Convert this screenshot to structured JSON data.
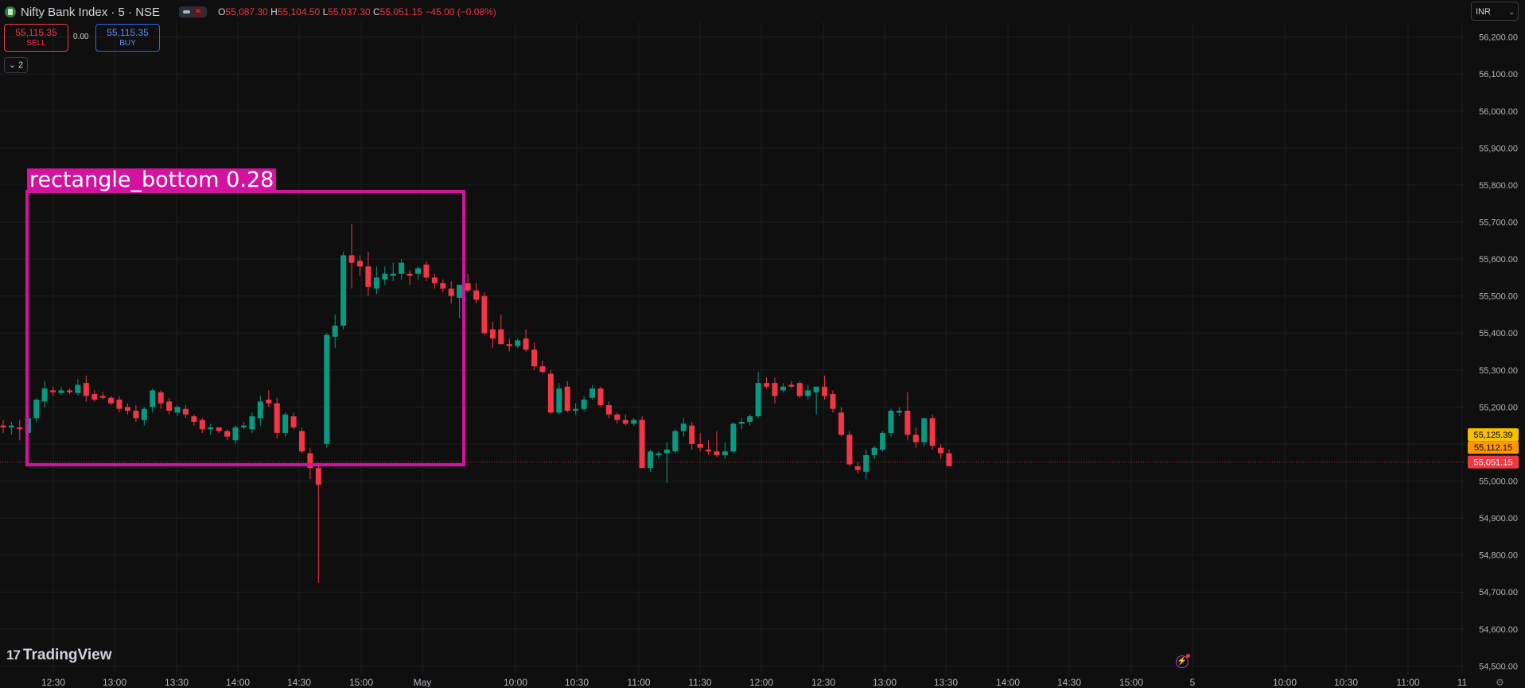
{
  "header": {
    "symbol": "Nifty Bank Index · 5 · NSE",
    "ohlc": {
      "o": "55,087.30",
      "h": "55,104.50",
      "l": "55,037.30",
      "c": "55,051.15",
      "change": "−45.00 (−0.08%)"
    }
  },
  "trade": {
    "sell_price": "55,115.35",
    "sell_label": "SELL",
    "spread": "0.00",
    "buy_price": "55,115.35",
    "buy_label": "BUY"
  },
  "indicator_toggle": "2",
  "currency": "INR",
  "logo_text": "TradingView",
  "detection": {
    "label": "rectangle_bottom  0.28"
  },
  "colors": {
    "up": "#089981",
    "down": "#f23645",
    "grid": "#1e1e1e",
    "detection": "#d1139f",
    "background": "#0f0f0f"
  },
  "chart_data": {
    "type": "candlestick",
    "y_ticks": [
      54500,
      54600,
      54700,
      54800,
      54900,
      55000,
      55100,
      55200,
      55300,
      55400,
      55500,
      55600,
      55700,
      55800,
      55900,
      56000,
      56100,
      56200
    ],
    "ylim": [
      54475,
      56240
    ],
    "x_labels": [
      "12:30",
      "13:00",
      "13:30",
      "14:00",
      "14:30",
      "15:00",
      "May",
      "10:00",
      "10:30",
      "11:00",
      "11:30",
      "12:00",
      "12:30",
      "13:00",
      "13:30",
      "14:00",
      "14:30",
      "15:00",
      "5",
      "10:00",
      "10:30",
      "11:00",
      "11",
      "11:00"
    ],
    "last_price_label": "55,051.15",
    "price_tags": [
      {
        "value": "55,125.39",
        "color": "#f7c000"
      },
      {
        "value": "55,112.15",
        "color": "#ff9800"
      }
    ],
    "candles": [
      {
        "o": 55150,
        "h": 55165,
        "l": 55130,
        "c": 55145
      },
      {
        "o": 55145,
        "h": 55160,
        "l": 55125,
        "c": 55150
      },
      {
        "o": 55145,
        "h": 55165,
        "l": 55110,
        "c": 55140
      },
      {
        "o": 55130,
        "h": 55175,
        "l": 55115,
        "c": 55170
      },
      {
        "o": 55170,
        "h": 55225,
        "l": 55160,
        "c": 55220
      },
      {
        "o": 55215,
        "h": 55270,
        "l": 55200,
        "c": 55250
      },
      {
        "o": 55245,
        "h": 55255,
        "l": 55230,
        "c": 55240
      },
      {
        "o": 55238,
        "h": 55255,
        "l": 55232,
        "c": 55245
      },
      {
        "o": 55245,
        "h": 55250,
        "l": 55235,
        "c": 55240
      },
      {
        "o": 55238,
        "h": 55275,
        "l": 55232,
        "c": 55260
      },
      {
        "o": 55265,
        "h": 55285,
        "l": 55215,
        "c": 55230
      },
      {
        "o": 55235,
        "h": 55245,
        "l": 55215,
        "c": 55220
      },
      {
        "o": 55230,
        "h": 55240,
        "l": 55220,
        "c": 55225
      },
      {
        "o": 55225,
        "h": 55230,
        "l": 55205,
        "c": 55210
      },
      {
        "o": 55220,
        "h": 55230,
        "l": 55185,
        "c": 55195
      },
      {
        "o": 55200,
        "h": 55210,
        "l": 55180,
        "c": 55190
      },
      {
        "o": 55190,
        "h": 55205,
        "l": 55160,
        "c": 55170
      },
      {
        "o": 55165,
        "h": 55200,
        "l": 55150,
        "c": 55195
      },
      {
        "o": 55200,
        "h": 55250,
        "l": 55185,
        "c": 55245
      },
      {
        "o": 55240,
        "h": 55245,
        "l": 55195,
        "c": 55210
      },
      {
        "o": 55215,
        "h": 55225,
        "l": 55180,
        "c": 55190
      },
      {
        "o": 55185,
        "h": 55205,
        "l": 55175,
        "c": 55200
      },
      {
        "o": 55195,
        "h": 55205,
        "l": 55170,
        "c": 55180
      },
      {
        "o": 55175,
        "h": 55180,
        "l": 55150,
        "c": 55160
      },
      {
        "o": 55165,
        "h": 55170,
        "l": 55130,
        "c": 55140
      },
      {
        "o": 55140,
        "h": 55155,
        "l": 55125,
        "c": 55145
      },
      {
        "o": 55145,
        "h": 55145,
        "l": 55130,
        "c": 55135
      },
      {
        "o": 55135,
        "h": 55140,
        "l": 55110,
        "c": 55120
      },
      {
        "o": 55110,
        "h": 55150,
        "l": 55100,
        "c": 55145
      },
      {
        "o": 55145,
        "h": 55160,
        "l": 55140,
        "c": 55150
      },
      {
        "o": 55140,
        "h": 55185,
        "l": 55130,
        "c": 55175
      },
      {
        "o": 55170,
        "h": 55230,
        "l": 55150,
        "c": 55215
      },
      {
        "o": 55220,
        "h": 55245,
        "l": 55200,
        "c": 55210
      },
      {
        "o": 55210,
        "h": 55225,
        "l": 55115,
        "c": 55130
      },
      {
        "o": 55130,
        "h": 55185,
        "l": 55120,
        "c": 55180
      },
      {
        "o": 55175,
        "h": 55185,
        "l": 55140,
        "c": 55145
      },
      {
        "o": 55135,
        "h": 55145,
        "l": 55075,
        "c": 55080
      },
      {
        "o": 55075,
        "h": 55090,
        "l": 55005,
        "c": 55035
      },
      {
        "o": 55035,
        "h": 55050,
        "l": 54725,
        "c": 54990
      },
      {
        "o": 55100,
        "h": 55400,
        "l": 55090,
        "c": 55395
      },
      {
        "o": 55390,
        "h": 55450,
        "l": 55360,
        "c": 55420
      },
      {
        "o": 55420,
        "h": 55620,
        "l": 55410,
        "c": 55610
      },
      {
        "o": 55610,
        "h": 55695,
        "l": 55520,
        "c": 55590
      },
      {
        "o": 55595,
        "h": 55610,
        "l": 55555,
        "c": 55580
      },
      {
        "o": 55580,
        "h": 55620,
        "l": 55500,
        "c": 55525
      },
      {
        "o": 55520,
        "h": 55580,
        "l": 55505,
        "c": 55550
      },
      {
        "o": 55545,
        "h": 55580,
        "l": 55530,
        "c": 55560
      },
      {
        "o": 55555,
        "h": 55590,
        "l": 55540,
        "c": 55560
      },
      {
        "o": 55560,
        "h": 55600,
        "l": 55545,
        "c": 55590
      },
      {
        "o": 55560,
        "h": 55570,
        "l": 55530,
        "c": 55555
      },
      {
        "o": 55560,
        "h": 55580,
        "l": 55545,
        "c": 55575
      },
      {
        "o": 55585,
        "h": 55595,
        "l": 55540,
        "c": 55550
      },
      {
        "o": 55550,
        "h": 55560,
        "l": 55520,
        "c": 55535
      },
      {
        "o": 55535,
        "h": 55545,
        "l": 55510,
        "c": 55520
      },
      {
        "o": 55520,
        "h": 55540,
        "l": 55480,
        "c": 55500
      },
      {
        "o": 55495,
        "h": 55530,
        "l": 55440,
        "c": 55530
      },
      {
        "o": 55535,
        "h": 55560,
        "l": 55510,
        "c": 55515
      },
      {
        "o": 55515,
        "h": 55535,
        "l": 55480,
        "c": 55490
      },
      {
        "o": 55500,
        "h": 55510,
        "l": 55395,
        "c": 55400
      },
      {
        "o": 55410,
        "h": 55430,
        "l": 55360,
        "c": 55385
      },
      {
        "o": 55410,
        "h": 55450,
        "l": 55370,
        "c": 55370
      },
      {
        "o": 55370,
        "h": 55385,
        "l": 55350,
        "c": 55365
      },
      {
        "o": 55365,
        "h": 55385,
        "l": 55360,
        "c": 55380
      },
      {
        "o": 55385,
        "h": 55410,
        "l": 55350,
        "c": 55355
      },
      {
        "o": 55355,
        "h": 55375,
        "l": 55300,
        "c": 55310
      },
      {
        "o": 55310,
        "h": 55325,
        "l": 55290,
        "c": 55295
      },
      {
        "o": 55290,
        "h": 55300,
        "l": 55180,
        "c": 55185
      },
      {
        "o": 55185,
        "h": 55265,
        "l": 55180,
        "c": 55250
      },
      {
        "o": 55255,
        "h": 55270,
        "l": 55185,
        "c": 55190
      },
      {
        "o": 55190,
        "h": 55210,
        "l": 55180,
        "c": 55195
      },
      {
        "o": 55195,
        "h": 55230,
        "l": 55190,
        "c": 55220
      },
      {
        "o": 55225,
        "h": 55260,
        "l": 55220,
        "c": 55250
      },
      {
        "o": 55250,
        "h": 55255,
        "l": 55200,
        "c": 55205
      },
      {
        "o": 55205,
        "h": 55215,
        "l": 55170,
        "c": 55180
      },
      {
        "o": 55180,
        "h": 55185,
        "l": 55155,
        "c": 55165
      },
      {
        "o": 55165,
        "h": 55180,
        "l": 55150,
        "c": 55155
      },
      {
        "o": 55155,
        "h": 55170,
        "l": 55150,
        "c": 55165
      },
      {
        "o": 55165,
        "h": 55175,
        "l": 55035,
        "c": 55035
      },
      {
        "o": 55035,
        "h": 55085,
        "l": 55025,
        "c": 55080
      },
      {
        "o": 55070,
        "h": 55080,
        "l": 55060,
        "c": 55075
      },
      {
        "o": 55075,
        "h": 55105,
        "l": 54995,
        "c": 55085
      },
      {
        "o": 55080,
        "h": 55140,
        "l": 55075,
        "c": 55135
      },
      {
        "o": 55135,
        "h": 55170,
        "l": 55120,
        "c": 55155
      },
      {
        "o": 55150,
        "h": 55160,
        "l": 55085,
        "c": 55100
      },
      {
        "o": 55100,
        "h": 55130,
        "l": 55080,
        "c": 55090
      },
      {
        "o": 55085,
        "h": 55110,
        "l": 55070,
        "c": 55080
      },
      {
        "o": 55080,
        "h": 55135,
        "l": 55065,
        "c": 55070
      },
      {
        "o": 55070,
        "h": 55105,
        "l": 55060,
        "c": 55080
      },
      {
        "o": 55080,
        "h": 55160,
        "l": 55075,
        "c": 55155
      },
      {
        "o": 55155,
        "h": 55170,
        "l": 55140,
        "c": 55160
      },
      {
        "o": 55160,
        "h": 55180,
        "l": 55150,
        "c": 55175
      },
      {
        "o": 55175,
        "h": 55295,
        "l": 55170,
        "c": 55265
      },
      {
        "o": 55265,
        "h": 55280,
        "l": 55250,
        "c": 55255
      },
      {
        "o": 55265,
        "h": 55280,
        "l": 55210,
        "c": 55230
      },
      {
        "o": 55245,
        "h": 55265,
        "l": 55240,
        "c": 55255
      },
      {
        "o": 55260,
        "h": 55270,
        "l": 55250,
        "c": 55255
      },
      {
        "o": 55265,
        "h": 55270,
        "l": 55225,
        "c": 55230
      },
      {
        "o": 55230,
        "h": 55260,
        "l": 55220,
        "c": 55245
      },
      {
        "o": 55240,
        "h": 55255,
        "l": 55180,
        "c": 55255
      },
      {
        "o": 55255,
        "h": 55285,
        "l": 55220,
        "c": 55230
      },
      {
        "o": 55235,
        "h": 55245,
        "l": 55185,
        "c": 55195
      },
      {
        "o": 55185,
        "h": 55200,
        "l": 55120,
        "c": 55125
      },
      {
        "o": 55125,
        "h": 55135,
        "l": 55040,
        "c": 55045
      },
      {
        "o": 55040,
        "h": 55050,
        "l": 55020,
        "c": 55030
      },
      {
        "o": 55025,
        "h": 55085,
        "l": 55005,
        "c": 55070
      },
      {
        "o": 55070,
        "h": 55095,
        "l": 55060,
        "c": 55090
      },
      {
        "o": 55085,
        "h": 55135,
        "l": 55080,
        "c": 55130
      },
      {
        "o": 55130,
        "h": 55195,
        "l": 55120,
        "c": 55190
      },
      {
        "o": 55185,
        "h": 55200,
        "l": 55175,
        "c": 55190
      },
      {
        "o": 55190,
        "h": 55240,
        "l": 55110,
        "c": 55125
      },
      {
        "o": 55125,
        "h": 55145,
        "l": 55090,
        "c": 55105
      },
      {
        "o": 55105,
        "h": 55170,
        "l": 55095,
        "c": 55170
      },
      {
        "o": 55170,
        "h": 55180,
        "l": 55085,
        "c": 55095
      },
      {
        "o": 55090,
        "h": 55100,
        "l": 55060,
        "c": 55075
      },
      {
        "o": 55075,
        "h": 55085,
        "l": 55040,
        "c": 55040
      }
    ]
  }
}
